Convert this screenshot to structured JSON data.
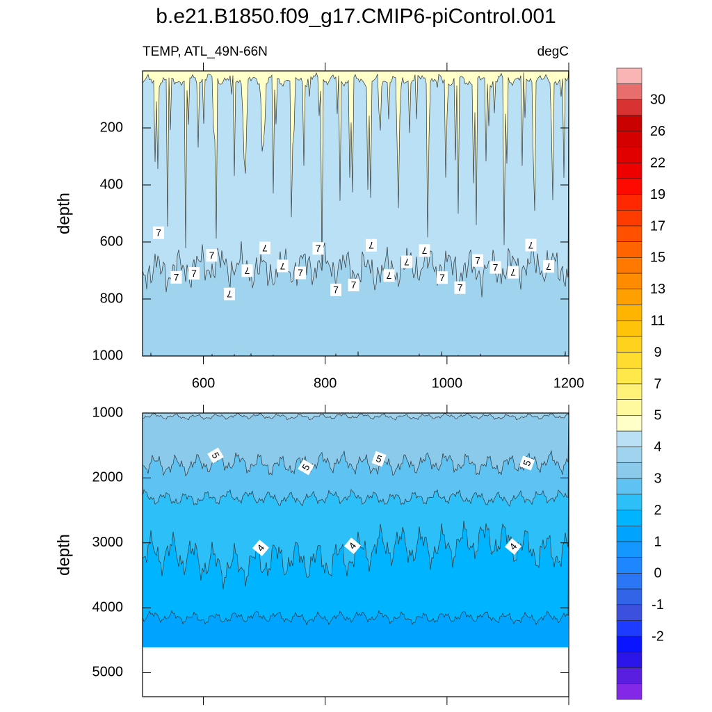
{
  "chart_data": {
    "type": "contour",
    "title": "b.e21.B1850.f09_g17.CMIP6-piControl.001",
    "left_label": "TEMP, ATL_49N-66N",
    "right_label": "degC",
    "panels": [
      {
        "ylabel": "depth",
        "xlim": [
          500,
          1200
        ],
        "xticks": [
          600,
          800,
          1000,
          1200
        ],
        "ylim": [
          0,
          1000
        ],
        "yticks": [
          200,
          400,
          600,
          800,
          1000
        ],
        "contour_labels": [
          "7",
          "7",
          "7",
          "7",
          "7",
          "7",
          "7",
          "7",
          "7",
          "7",
          "7",
          "7",
          "7",
          "7",
          "7",
          "7",
          "7",
          "7",
          "7",
          "7",
          "7",
          "7",
          "7"
        ]
      },
      {
        "ylabel": "depth",
        "xlim": [
          500,
          1200
        ],
        "xticks": [
          600,
          800,
          1000,
          1200
        ],
        "ylim": [
          1000,
          5370
        ],
        "yticks": [
          1000,
          2000,
          3000,
          4000,
          5000
        ],
        "contour_labels": [
          "5",
          "5",
          "5",
          "5",
          "4",
          "4",
          "4"
        ]
      }
    ],
    "colorbar": {
      "colors": [
        "#f9b4b4",
        "#e86e6e",
        "#d83232",
        "#c80000",
        "#d40000",
        "#e00000",
        "#ee0000",
        "#ff0a00",
        "#ff2800",
        "#ff3c00",
        "#ff5000",
        "#ff6400",
        "#ff7800",
        "#ff8c00",
        "#ffa000",
        "#ffb400",
        "#ffc40a",
        "#ffd21e",
        "#ffdc30",
        "#ffe84a",
        "#fff078",
        "#fff89c",
        "#ffffc8",
        "#b9e0f4",
        "#a0d3ee",
        "#8ccaeb",
        "#5ec2f2",
        "#2cbff8",
        "#00b4ff",
        "#00a4ff",
        "#1496ff",
        "#1e86ff",
        "#2a76f4",
        "#3264e8",
        "#3c50e0",
        "#1e3cff",
        "#0a14ff",
        "#2a14e8",
        "#5a1ee0",
        "#8228e6"
      ],
      "labels": [
        30,
        26,
        22,
        19,
        17,
        15,
        13,
        11,
        9,
        7,
        5,
        4,
        3,
        2,
        1,
        0,
        -1,
        -2
      ]
    }
  }
}
